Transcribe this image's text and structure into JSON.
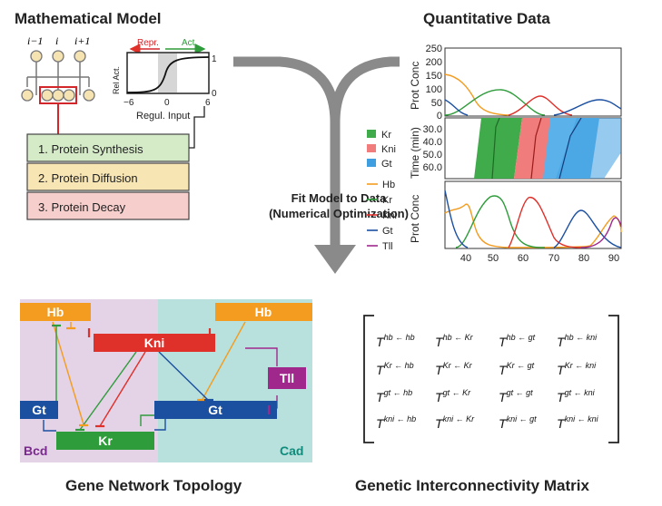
{
  "titles": {
    "model": "Mathematical Model",
    "data": "Quantitative Data",
    "network": "Gene Network Topology",
    "matrix": "Genetic Interconnectivity Matrix"
  },
  "model": {
    "cell_labels": [
      "i−1",
      "i",
      "i+1"
    ],
    "regulation": {
      "repr": "Repr.",
      "act": "Act.",
      "ylabel": "Rel Act.",
      "xlabel": "Regul. Input",
      "y_ticks": [
        "1",
        "0"
      ],
      "x_ticks": [
        "−6",
        "0",
        "6"
      ]
    },
    "steps": [
      {
        "label": "1. Protein Synthesis",
        "color": "#d5ebc8"
      },
      {
        "label": "2. Protein Diffusion",
        "color": "#f8e5b4"
      },
      {
        "label": "3. Protein Decay",
        "color": "#f6cfcd"
      }
    ]
  },
  "fit": {
    "line1": "Fit Model to Data",
    "line2": "(Numerical Optimization)"
  },
  "data": {
    "ylabel_conc": "Prot Conc",
    "ylabel_time": "Time (min)",
    "conc_ticks": [
      "250",
      "200",
      "150",
      "100",
      "50",
      "0"
    ],
    "time_ticks": [
      "30.0",
      "40.0",
      "50.0",
      "60.0"
    ],
    "x_ticks": [
      "40",
      "50",
      "60",
      "70",
      "80",
      "90"
    ],
    "band_legend": [
      {
        "label": "Kr",
        "color": "#3fab4a"
      },
      {
        "label": "Kni",
        "color": "#f07d7b"
      },
      {
        "label": "Gt",
        "color": "#3f9ee0"
      }
    ],
    "line_legend": [
      {
        "label": "Hb",
        "color": "#f39c1f"
      },
      {
        "label": "Kr",
        "color": "#2e9c3a"
      },
      {
        "label": "Kni",
        "color": "#e0302a"
      },
      {
        "label": "Gt",
        "color": "#1b4fa0"
      },
      {
        "label": "Tll",
        "color": "#a0288c"
      }
    ]
  },
  "network": {
    "genes": {
      "hb_left": "Hb",
      "hb_right": "Hb",
      "kni": "Kni",
      "tll": "Tll",
      "gt_left": "Gt",
      "gt_right": "Gt",
      "kr": "Kr"
    },
    "regions": {
      "bcd": "Bcd",
      "cad": "Cad"
    }
  },
  "matrix": {
    "cells": [
      [
        "hb",
        "hb"
      ],
      [
        "hb",
        "Kr"
      ],
      [
        "hb",
        "gt"
      ],
      [
        "hb",
        "kni"
      ],
      [
        "Kr",
        "hb"
      ],
      [
        "Kr",
        "Kr"
      ],
      [
        "Kr",
        "gt"
      ],
      [
        "Kr",
        "kni"
      ],
      [
        "gt",
        "hb"
      ],
      [
        "gt",
        "Kr"
      ],
      [
        "gt",
        "gt"
      ],
      [
        "gt",
        "kni"
      ],
      [
        "kni",
        "hb"
      ],
      [
        "kni",
        "Kr"
      ],
      [
        "kni",
        "gt"
      ],
      [
        "kni",
        "kni"
      ]
    ]
  }
}
